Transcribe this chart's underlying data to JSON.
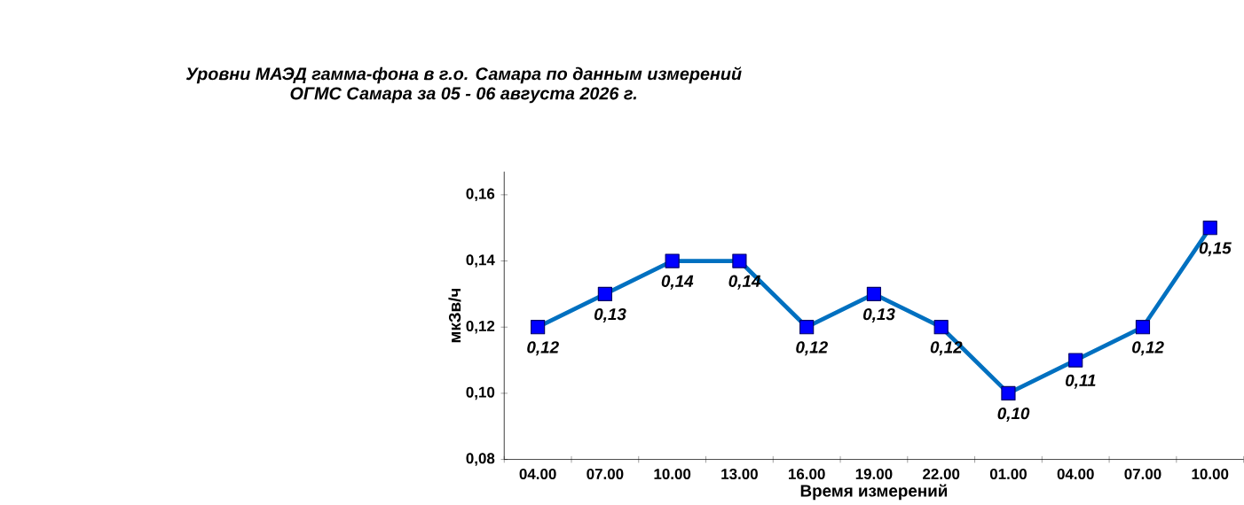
{
  "chart_data": {
    "type": "line",
    "title": "Уровни МАЭД гамма-фона в г.о. Самара по данным измерений",
    "subtitle": "ОГМС Самара за 05 - 06 августа 2026 г.",
    "xlabel": "Время измерений",
    "ylabel": "мкЗв/ч",
    "categories": [
      "04.00",
      "07.00",
      "10.00",
      "13.00",
      "16.00",
      "19.00",
      "22.00",
      "01.00",
      "04.00",
      "07.00",
      "10.00"
    ],
    "values": [
      0.12,
      0.13,
      0.14,
      0.14,
      0.12,
      0.13,
      0.12,
      0.1,
      0.11,
      0.12,
      0.15
    ],
    "value_labels": [
      "0,12",
      "0,13",
      "0,14",
      "0,14",
      "0,12",
      "0,13",
      "0,12",
      "0,10",
      "0,11",
      "0,12",
      "0,15"
    ],
    "color": "#0070c0",
    "marker": "square",
    "line_style": "solid",
    "ylim": [
      0.08,
      0.167
    ],
    "yticks": [
      {
        "value": 0.08,
        "label": "0,08"
      },
      {
        "value": 0.1,
        "label": "0,10"
      },
      {
        "value": 0.12,
        "label": "0,12"
      },
      {
        "value": 0.14,
        "label": "0,14"
      },
      {
        "value": 0.16,
        "label": "0,16"
      }
    ]
  }
}
